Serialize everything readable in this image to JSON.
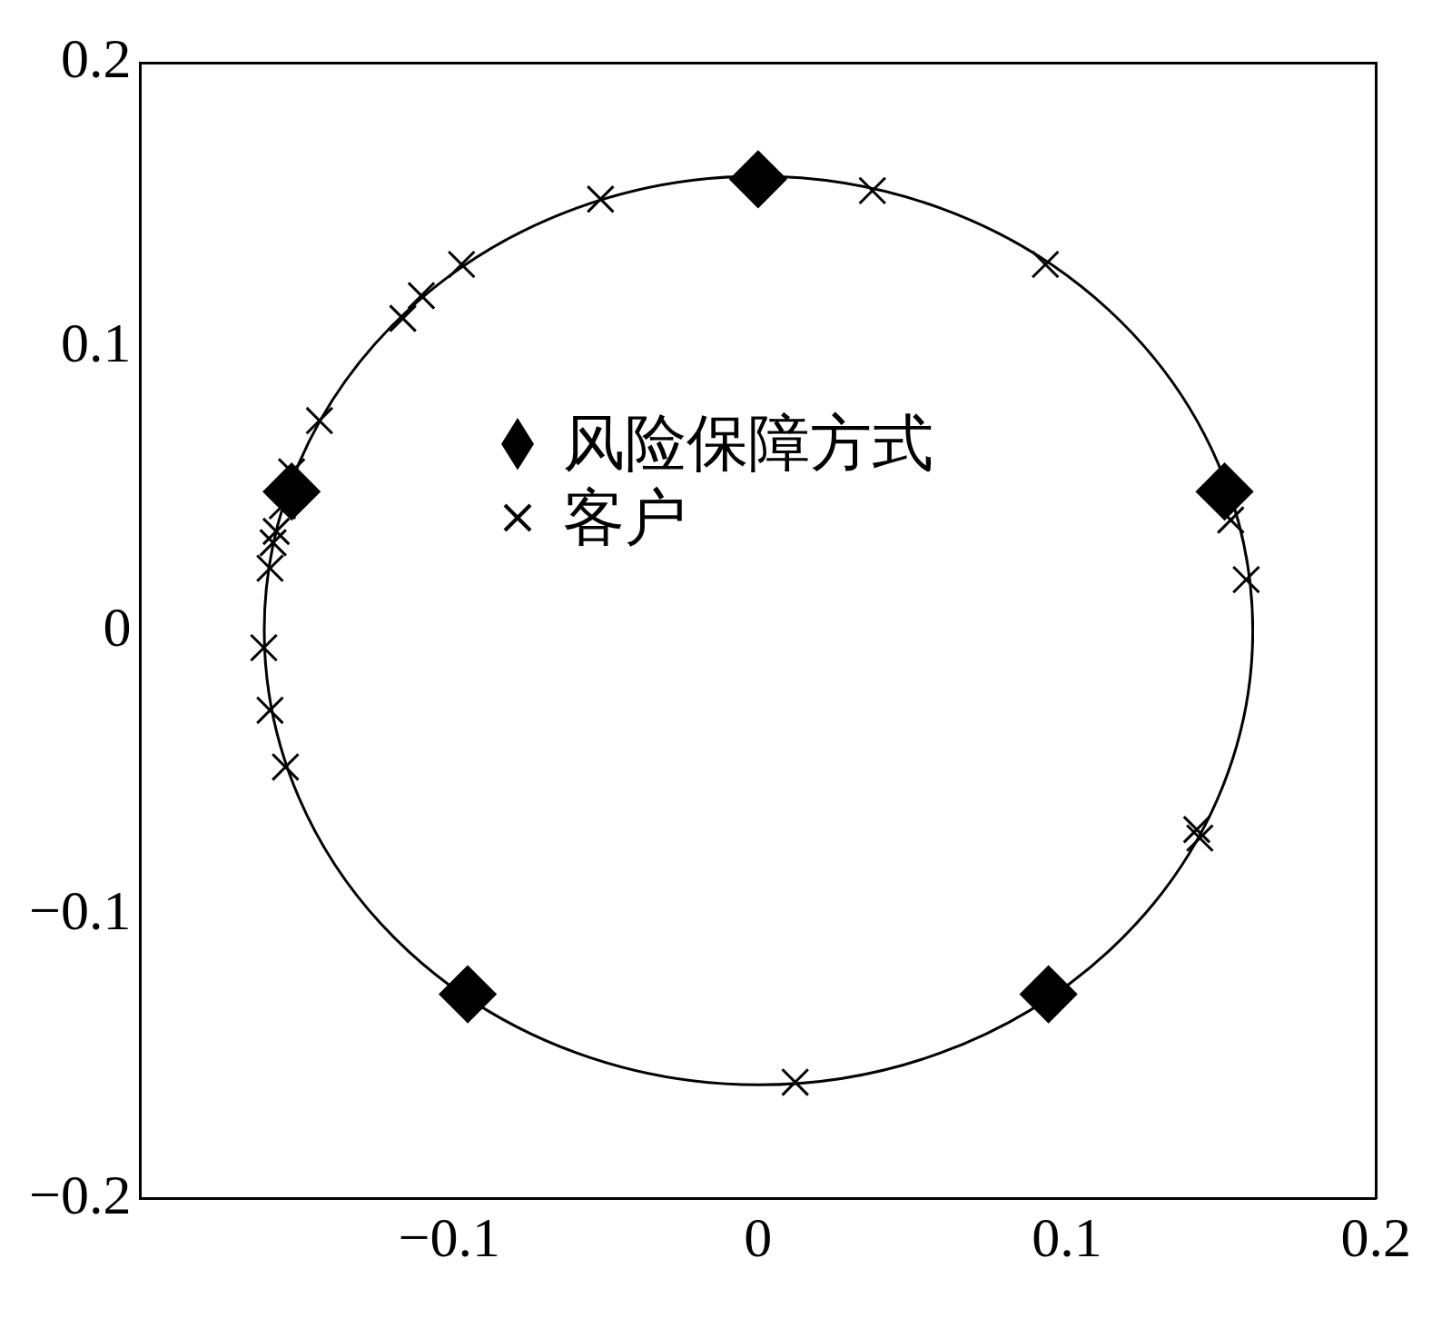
{
  "chart_data": {
    "type": "scatter",
    "xlim": [
      -0.2,
      0.2
    ],
    "ylim": [
      -0.2,
      0.2
    ],
    "xticks": [
      {
        "value": -0.2,
        "label": null
      },
      -0.1,
      0,
      0.1,
      0.2
    ],
    "yticks": [
      -0.2,
      -0.1,
      0,
      0.1,
      0.2
    ],
    "legend": "top",
    "grid": false,
    "series": [
      {
        "name": "风险保障方式",
        "color": "#000000",
        "marker": "diamond",
        "x": [
          0,
          0.151,
          -0.151,
          -0.094,
          0.094
        ],
        "values": [
          0.159,
          0.049,
          0.049,
          -0.128,
          -0.128
        ]
      },
      {
        "name": "客户",
        "color": "#000000",
        "marker": "cross",
        "x": [
          -0.051,
          0.037,
          0.093,
          -0.096,
          -0.109,
          -0.115,
          -0.142,
          -0.151,
          -0.154,
          -0.156,
          -0.157,
          -0.158,
          -0.16,
          -0.158,
          -0.153,
          0.153,
          0.158,
          0.142,
          0.143,
          0.012
        ],
        "values": [
          0.152,
          0.155,
          0.129,
          0.129,
          0.118,
          0.11,
          0.074,
          0.056,
          0.044,
          0.035,
          0.031,
          0.022,
          -0.006,
          -0.028,
          -0.048,
          0.039,
          0.018,
          -0.07,
          -0.073,
          -0.159
        ]
      }
    ]
  }
}
